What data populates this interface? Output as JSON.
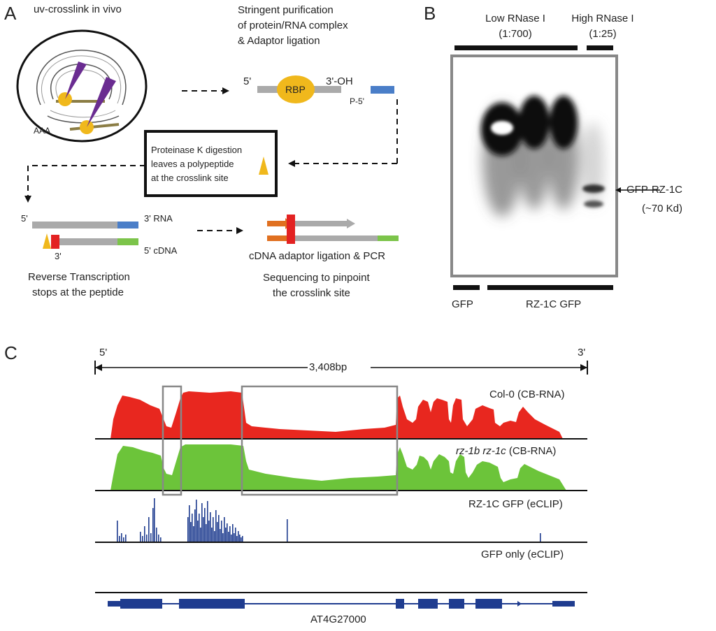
{
  "panelA": {
    "letter": "A",
    "step1": "uv-crosslink in vivo",
    "aaa": "AAA",
    "step2_line1": "Stringent purification",
    "step2_line2": "of protein/RNA complex",
    "step2_line3": "& Adaptor ligation",
    "prime5": "5'",
    "prime3oh": "3'-OH",
    "rbp": "RBP",
    "p5": "P-5'",
    "box_line1": "Proteinase K digestion",
    "box_line2": "leaves a polypeptide",
    "box_line3": "at the crosslink site",
    "rt_5": "5'",
    "rt_3rna": "3' RNA",
    "rt_3": "3'",
    "rt_5cdna": "5' cDNA",
    "rt_line1": "Reverse Transcription",
    "rt_line2": "stops at the peptide",
    "seq_line1": "cDNA adaptor ligation & PCR",
    "seq_line2": "Sequencing to pinpoint",
    "seq_line3": "the crosslink site"
  },
  "panelB": {
    "letter": "B",
    "low_line1": "Low RNase I",
    "low_line2": "(1:700)",
    "high_line1": "High RNase I",
    "high_line2": "(1:25)",
    "band_line1": "GFP-RZ-1C",
    "band_line2": "(~70 Kd)",
    "lane_gfp": "GFP",
    "lane_rz": "RZ-1C GFP"
  },
  "panelC": {
    "letter": "C",
    "prime5": "5'",
    "prime3": "3'",
    "length": "3,408bp",
    "track1": "Col-0 (CB-RNA)",
    "track2_italic": "rz-1b rz-1c",
    "track2_rest": " (CB-RNA)",
    "track3": "RZ-1C GFP (eCLIP)",
    "track4": "GFP only (eCLIP)",
    "gene": "AT4G27000"
  },
  "colors": {
    "red_track": "#e8271f",
    "green_track": "#6cc43a",
    "blue_clip": "#1f3c8f",
    "rbp": "#f0b81c",
    "blue_adaptor": "#4a7ec8",
    "green_adaptor": "#7cc44a",
    "red_peptide": "#e32222",
    "orange_arrow": "#e07020",
    "purple": "#6a2c91"
  }
}
